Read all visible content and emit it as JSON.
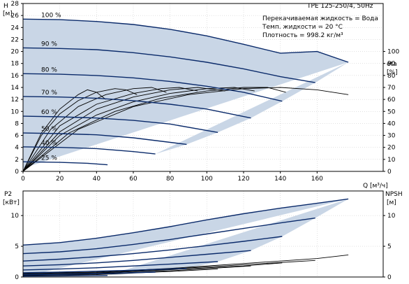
{
  "header": {
    "model": "TPE 125-250/4, 50Hz",
    "info": [
      "Перекачиваемая жидкость = Вода",
      "Темп. жидкости = 20 °C",
      "Плотность = 998.2 кг/м³"
    ]
  },
  "colors": {
    "area": "#c9d6e6",
    "curve": "#0a2a6a",
    "grid": "#cfcfcf",
    "axis": "#000000"
  },
  "chart_data": [
    {
      "type": "line",
      "name": "head",
      "ylabel": "H",
      "yunit": "[м]",
      "xlabel": "Q [м³/ч]",
      "y2label": "eta",
      "y2unit": "[%]",
      "xlim": [
        0,
        180
      ],
      "ylim": [
        0,
        28
      ],
      "y2lim": [
        0,
        140
      ],
      "xticks": [
        0,
        20,
        40,
        60,
        80,
        100,
        120,
        140,
        160
      ],
      "yticks": [
        0,
        2,
        4,
        6,
        8,
        10,
        12,
        14,
        16,
        18,
        20,
        22,
        24,
        26,
        28
      ],
      "y2ticks": [
        0,
        10,
        20,
        30,
        40,
        50,
        60,
        70,
        80,
        90,
        100
      ],
      "grid": true,
      "series": [
        {
          "name": "100 %",
          "x": [
            0,
            20,
            40,
            60,
            80,
            100,
            120,
            140,
            160,
            177
          ],
          "y": [
            25.4,
            25.3,
            25.0,
            24.5,
            23.7,
            22.6,
            21.2,
            19.7,
            20.0,
            18.2
          ]
        },
        {
          "name": "90 %",
          "x": [
            0,
            20,
            40,
            60,
            80,
            100,
            120,
            140,
            159
          ],
          "y": [
            20.6,
            20.5,
            20.3,
            19.8,
            19.1,
            18.2,
            17.1,
            15.8,
            14.8
          ]
        },
        {
          "name": "80 %",
          "x": [
            0,
            20,
            40,
            60,
            80,
            100,
            120,
            141
          ],
          "y": [
            16.3,
            16.2,
            16.0,
            15.6,
            15.0,
            14.2,
            13.2,
            11.7
          ]
        },
        {
          "name": "70 %",
          "x": [
            0,
            20,
            40,
            60,
            80,
            100,
            124
          ],
          "y": [
            12.5,
            12.4,
            12.2,
            11.8,
            11.2,
            10.4,
            8.9
          ]
        },
        {
          "name": "60 %",
          "x": [
            0,
            20,
            40,
            60,
            80,
            106
          ],
          "y": [
            9.2,
            9.1,
            8.9,
            8.5,
            7.9,
            6.5
          ]
        },
        {
          "name": "50 %",
          "x": [
            0,
            20,
            40,
            60,
            89
          ],
          "y": [
            6.4,
            6.3,
            6.1,
            5.6,
            4.5
          ]
        },
        {
          "name": "40 %",
          "x": [
            0,
            20,
            40,
            60,
            72
          ],
          "y": [
            4.1,
            4.0,
            3.8,
            3.3,
            2.9
          ]
        },
        {
          "name": "25 %",
          "x": [
            0,
            20,
            35,
            46
          ],
          "y": [
            1.6,
            1.5,
            1.35,
            1.1
          ]
        }
      ],
      "efficiency_series": [
        {
          "x": [
            0,
            10,
            20,
            30,
            35,
            40,
            45
          ],
          "y": [
            0,
            32,
            52,
            64,
            68,
            66,
            60
          ]
        },
        {
          "x": [
            0,
            10,
            20,
            30,
            40,
            50,
            56,
            62
          ],
          "y": [
            0,
            30,
            48,
            59,
            66,
            69,
            68,
            64
          ]
        },
        {
          "x": [
            0,
            15,
            30,
            45,
            60,
            70,
            78
          ],
          "y": [
            0,
            35,
            54,
            64,
            69,
            70,
            66
          ]
        },
        {
          "x": [
            0,
            20,
            40,
            60,
            75,
            85,
            95
          ],
          "y": [
            0,
            38,
            56,
            65,
            69,
            70,
            67
          ]
        },
        {
          "x": [
            0,
            20,
            40,
            60,
            80,
            95,
            110
          ],
          "y": [
            0,
            33,
            52,
            62,
            68,
            70,
            67
          ]
        },
        {
          "x": [
            0,
            20,
            40,
            60,
            80,
            100,
            115,
            126
          ],
          "y": [
            0,
            30,
            47,
            58,
            65,
            69,
            70,
            67
          ]
        },
        {
          "x": [
            0,
            25,
            50,
            75,
            100,
            120,
            133,
            143
          ],
          "y": [
            0,
            32,
            50,
            61,
            67,
            70,
            70,
            66
          ]
        },
        {
          "x": [
            0,
            30,
            60,
            90,
            120,
            140,
            160,
            177
          ],
          "y": [
            0,
            35,
            54,
            64,
            69,
            70,
            68,
            64
          ]
        }
      ]
    },
    {
      "type": "line",
      "name": "power",
      "ylabel": "P2",
      "yunit": "[кВт]",
      "y2label": "NPSH",
      "y2unit": "[м]",
      "xlim": [
        0,
        180
      ],
      "ylim": [
        0,
        14
      ],
      "y2lim": [
        0,
        14
      ],
      "yticks": [
        0,
        5,
        10
      ],
      "y2ticks": [
        0,
        5,
        10
      ],
      "grid": true,
      "series": [
        {
          "name": "100 %",
          "x": [
            0,
            20,
            40,
            60,
            80,
            100,
            120,
            140,
            160,
            177
          ],
          "y": [
            5.2,
            5.6,
            6.3,
            7.2,
            8.2,
            9.3,
            10.3,
            11.2,
            12.0,
            12.7
          ]
        },
        {
          "name": "90 %",
          "x": [
            0,
            20,
            40,
            60,
            80,
            100,
            120,
            140,
            159
          ],
          "y": [
            3.8,
            4.1,
            4.6,
            5.3,
            6.1,
            7.0,
            7.9,
            8.8,
            9.6
          ]
        },
        {
          "name": "80 %",
          "x": [
            0,
            20,
            40,
            60,
            80,
            100,
            120,
            141
          ],
          "y": [
            2.6,
            2.9,
            3.3,
            3.8,
            4.4,
            5.1,
            5.8,
            6.6
          ]
        },
        {
          "name": "70 %",
          "x": [
            0,
            20,
            40,
            60,
            80,
            100,
            124
          ],
          "y": [
            1.8,
            2.0,
            2.3,
            2.7,
            3.2,
            3.7,
            4.3
          ]
        },
        {
          "name": "60 %",
          "x": [
            0,
            20,
            40,
            60,
            80,
            106
          ],
          "y": [
            1.15,
            1.3,
            1.5,
            1.8,
            2.1,
            2.5
          ]
        },
        {
          "name": "50 %",
          "x": [
            0,
            20,
            40,
            60,
            89
          ],
          "y": [
            0.7,
            0.8,
            0.95,
            1.1,
            1.4
          ]
        },
        {
          "name": "40 %",
          "x": [
            0,
            20,
            40,
            72
          ],
          "y": [
            0.4,
            0.45,
            0.55,
            0.8
          ]
        },
        {
          "name": "25 %",
          "x": [
            0,
            20,
            46
          ],
          "y": [
            0.15,
            0.18,
            0.25
          ]
        }
      ],
      "npsh_series": [
        {
          "x": [
            0,
            40,
            80,
            120,
            160,
            177
          ],
          "y": [
            0.6,
            0.8,
            1.4,
            2.2,
            3.0,
            3.6
          ]
        },
        {
          "x": [
            0,
            40,
            80,
            120,
            159
          ],
          "y": [
            0.5,
            0.7,
            1.3,
            2.0,
            2.7
          ]
        },
        {
          "x": [
            0,
            40,
            80,
            120,
            141
          ],
          "y": [
            0.4,
            0.6,
            1.2,
            1.8,
            2.3
          ]
        },
        {
          "x": [
            0,
            40,
            80,
            124
          ],
          "y": [
            0.3,
            0.5,
            1.0,
            1.8
          ]
        },
        {
          "x": [
            0,
            40,
            80,
            106
          ],
          "y": [
            0.25,
            0.4,
            0.9,
            1.3
          ]
        }
      ]
    }
  ]
}
